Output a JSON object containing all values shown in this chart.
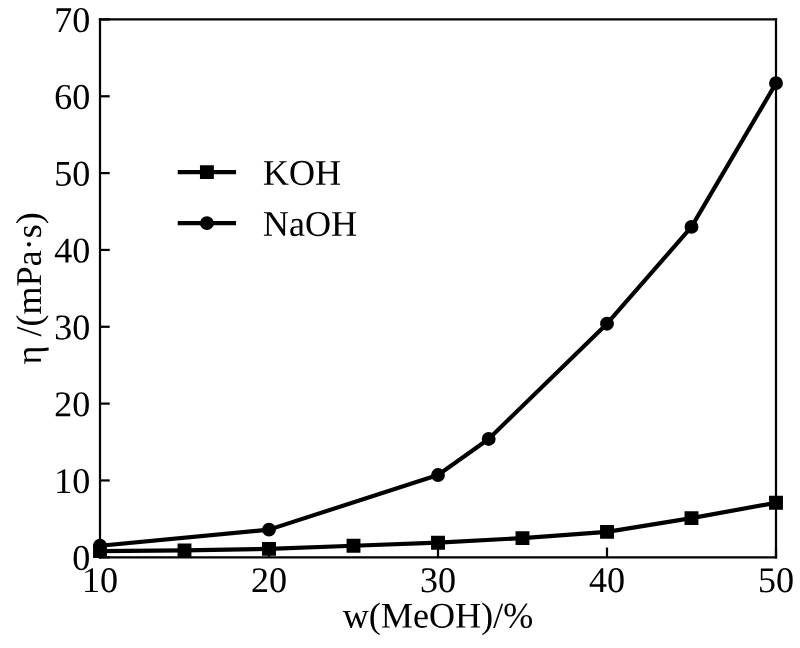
{
  "chart_data": {
    "type": "line",
    "xlabel": "w(MeOH)/%",
    "ylabel": "η /(mPa·s)",
    "xlim": [
      10,
      50
    ],
    "xticks": [
      10,
      20,
      30,
      40,
      50
    ],
    "ylim": [
      0,
      70
    ],
    "yticks": [
      0,
      10,
      20,
      30,
      40,
      50,
      60,
      70
    ],
    "legend": "top left",
    "grid": false,
    "line_style": "solid",
    "series": [
      {
        "name": "KOH",
        "color": "#000000",
        "marker": "square",
        "x": [
          10,
          15,
          20,
          25,
          30,
          35,
          40,
          45,
          50
        ],
        "values": [
          0.8,
          0.9,
          1.1,
          1.5,
          1.9,
          2.5,
          3.3,
          5.1,
          7.1
        ]
      },
      {
        "name": "NaOH",
        "color": "#000000",
        "marker": "circle",
        "x": [
          10,
          20,
          30,
          33,
          40,
          45,
          50
        ],
        "values": [
          1.5,
          3.6,
          10.7,
          15.4,
          30.4,
          43,
          61.7
        ]
      }
    ]
  }
}
